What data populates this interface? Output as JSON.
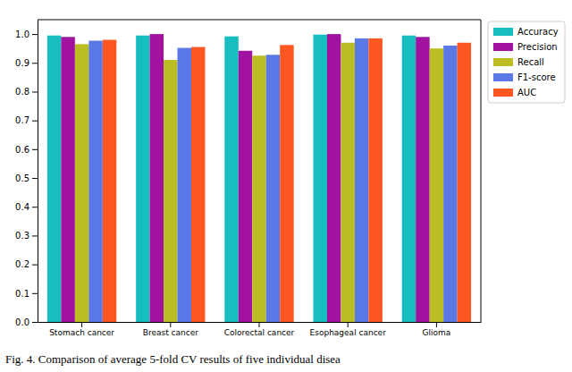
{
  "chart_data": {
    "type": "bar",
    "title": "Fig. 4. Comparison of average 5-fold CV results of five individual disea",
    "categories": [
      "Stomach cancer",
      "Breast cancer",
      "Colorectal cancer",
      "Esophageal cancer",
      "Glioma"
    ],
    "series": [
      {
        "name": "Accuracy",
        "color": "#17bebf",
        "values": [
          0.995,
          0.995,
          0.992,
          0.998,
          0.995
        ]
      },
      {
        "name": "Precision",
        "color": "#a0129f",
        "values": [
          0.99,
          1.0,
          0.942,
          1.0,
          0.99
        ]
      },
      {
        "name": "Recall",
        "color": "#bcbd22",
        "values": [
          0.965,
          0.91,
          0.925,
          0.97,
          0.95
        ]
      },
      {
        "name": "F1-score",
        "color": "#5a78e6",
        "values": [
          0.977,
          0.952,
          0.928,
          0.985,
          0.96
        ]
      },
      {
        "name": "AUC",
        "color": "#ff5722",
        "values": [
          0.98,
          0.955,
          0.962,
          0.985,
          0.97
        ]
      }
    ],
    "ylim": [
      0,
      1.05
    ],
    "yticks": [
      {
        "value": 0,
        "label": "0.0"
      },
      {
        "value": 0.1,
        "label": "0.1"
      },
      {
        "value": 0.2,
        "label": "0.2"
      },
      {
        "value": 0.3,
        "label": "0.3"
      },
      {
        "value": 0.4,
        "label": "0.4"
      },
      {
        "value": 0.5,
        "label": "0.5"
      },
      {
        "value": 0.6,
        "label": "0.6"
      },
      {
        "value": 0.7,
        "label": "0.7"
      },
      {
        "value": 0.8,
        "label": "0.8"
      },
      {
        "value": 0.9,
        "label": "0.9"
      },
      {
        "value": 1.0,
        "label": "1.0"
      }
    ],
    "legend": "upper right"
  }
}
